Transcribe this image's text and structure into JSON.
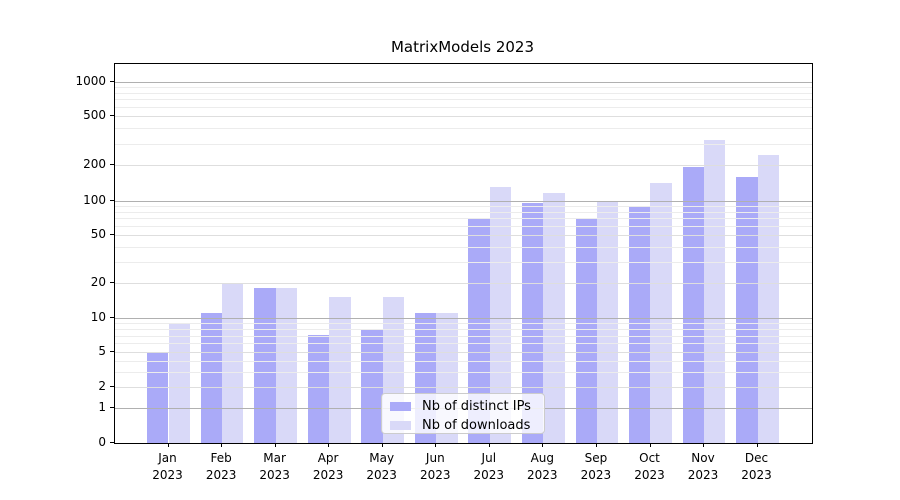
{
  "chart_data": {
    "type": "bar",
    "title": "MatrixModels 2023",
    "year": "2023",
    "categories": [
      "Jan",
      "Feb",
      "Mar",
      "Apr",
      "May",
      "Jun",
      "Jul",
      "Aug",
      "Sep",
      "Oct",
      "Nov",
      "Dec"
    ],
    "series": [
      {
        "name": "Nb of distinct IPs",
        "color": "#aaaaf8",
        "values": [
          5,
          11,
          18,
          7,
          8,
          11,
          70,
          95,
          70,
          90,
          195,
          160
        ]
      },
      {
        "name": "Nb of downloads",
        "color": "#d9d9f8",
        "values": [
          9,
          20,
          18,
          15,
          15,
          11,
          130,
          115,
          97,
          140,
          320,
          240
        ]
      }
    ],
    "xlabel": "",
    "ylabel": "",
    "yscale": "symlog-like custom (log above 2, compressed below)",
    "ylim": [
      0,
      1400
    ],
    "yticks": [
      0,
      1,
      2,
      5,
      10,
      20,
      50,
      100,
      200,
      500,
      1000
    ],
    "major_gridline_values": [
      1,
      10,
      100,
      1000
    ],
    "labeled_gridline_values": [
      2,
      5,
      20,
      50,
      200,
      500
    ],
    "minor_gridline_values": [
      3,
      4,
      6,
      7,
      8,
      9,
      30,
      40,
      60,
      70,
      80,
      90,
      300,
      400,
      600,
      700,
      800,
      900
    ],
    "grid": "on",
    "gridlines_above_bars": true,
    "legend": {
      "position": "inside-bottom-center",
      "labels": [
        "Nb of distinct IPs",
        "Nb of downloads"
      ]
    }
  }
}
